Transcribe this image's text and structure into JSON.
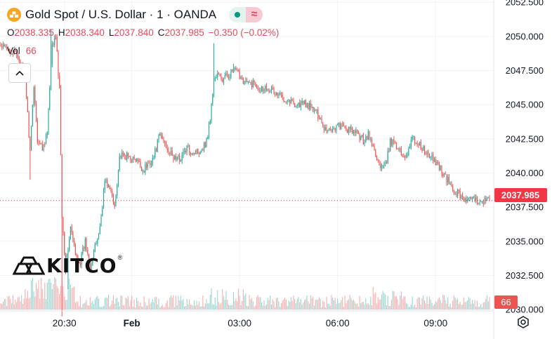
{
  "header": {
    "title": "Gold Spot / U.S. Dollar · 1 · OANDA",
    "ohlc": {
      "o_label": "O",
      "o": "2038.335",
      "h_label": "H",
      "h": "2038.340",
      "l_label": "L",
      "l": "2037.840",
      "c_label": "C",
      "c": "2037.985",
      "change": "−0.350 (−0.02%)"
    },
    "vol_label": "Vol",
    "vol_value": "66"
  },
  "logo": {
    "text": "KITCO",
    "mark": "®"
  },
  "colors": {
    "up": "#26a69a",
    "down": "#ef5350",
    "grid": "#f0f3fa",
    "axis_text": "#131722",
    "badge": "#f23645"
  },
  "chart_data": {
    "type": "candlestick",
    "symbol": "Gold Spot / U.S. Dollar",
    "interval": "1",
    "source": "OANDA",
    "x_ticks": [
      {
        "label": "20:30",
        "idx": 52
      },
      {
        "label": "Feb",
        "idx": 107
      },
      {
        "label": "03:00",
        "idx": 195
      },
      {
        "label": "06:00",
        "idx": 275
      },
      {
        "label": "09:00",
        "idx": 355
      }
    ],
    "y_ticks": [
      "2052.500",
      "2050.000",
      "2047.500",
      "2045.000",
      "2042.500",
      "2040.000",
      "2037.500",
      "2035.000",
      "2032.500",
      "2030.000"
    ],
    "ylim": [
      2029.0,
      2053.0
    ],
    "last_price": "2037.985",
    "last_volume": "66",
    "n_bars": 400,
    "keypoints": [
      [
        0,
        2049.2
      ],
      [
        8,
        2049.0
      ],
      [
        14,
        2048.6
      ],
      [
        20,
        2047.0
      ],
      [
        24,
        2041.5
      ],
      [
        27,
        2046.5
      ],
      [
        30,
        2042.5
      ],
      [
        34,
        2041.8
      ],
      [
        38,
        2043.0
      ],
      [
        42,
        2049.3
      ],
      [
        45,
        2050.0
      ],
      [
        48,
        2046.0
      ],
      [
        50,
        2037.0
      ],
      [
        53,
        2033.0
      ],
      [
        57,
        2036.0
      ],
      [
        61,
        2034.0
      ],
      [
        65,
        2033.5
      ],
      [
        69,
        2035.0
      ],
      [
        73,
        2033.2
      ],
      [
        77,
        2034.5
      ],
      [
        81,
        2036.0
      ],
      [
        85,
        2039.5
      ],
      [
        89,
        2038.8
      ],
      [
        93,
        2037.6
      ],
      [
        97,
        2041.2
      ],
      [
        103,
        2041.2
      ],
      [
        108,
        2041.0
      ],
      [
        112,
        2040.8
      ],
      [
        116,
        2040.2
      ],
      [
        120,
        2040.6
      ],
      [
        125,
        2041.2
      ],
      [
        130,
        2042.8
      ],
      [
        135,
        2042.0
      ],
      [
        140,
        2041.2
      ],
      [
        146,
        2041.0
      ],
      [
        152,
        2041.8
      ],
      [
        158,
        2041.5
      ],
      [
        163,
        2041.7
      ],
      [
        168,
        2042.3
      ],
      [
        171,
        2044.0
      ],
      [
        174,
        2046.8
      ],
      [
        177,
        2047.2
      ],
      [
        181,
        2046.8
      ],
      [
        186,
        2047.2
      ],
      [
        190,
        2047.5
      ],
      [
        194,
        2047.3
      ],
      [
        198,
        2046.8
      ],
      [
        202,
        2046.5
      ],
      [
        206,
        2046.6
      ],
      [
        212,
        2046.2
      ],
      [
        218,
        2046.3
      ],
      [
        224,
        2045.8
      ],
      [
        230,
        2045.6
      ],
      [
        236,
        2045.3
      ],
      [
        242,
        2045.0
      ],
      [
        248,
        2045.1
      ],
      [
        254,
        2044.7
      ],
      [
        260,
        2044.2
      ],
      [
        264,
        2043.3
      ],
      [
        270,
        2043.2
      ],
      [
        276,
        2043.5
      ],
      [
        282,
        2043.2
      ],
      [
        288,
        2043.0
      ],
      [
        292,
        2042.8
      ],
      [
        296,
        2042.4
      ],
      [
        300,
        2042.8
      ],
      [
        306,
        2041.4
      ],
      [
        310,
        2040.3
      ],
      [
        314,
        2040.5
      ],
      [
        318,
        2042.2
      ],
      [
        322,
        2042.3
      ],
      [
        326,
        2041.5
      ],
      [
        330,
        2041.2
      ],
      [
        336,
        2042.5
      ],
      [
        341,
        2042.2
      ],
      [
        347,
        2041.4
      ],
      [
        353,
        2041.0
      ],
      [
        358,
        2040.5
      ],
      [
        362,
        2039.8
      ],
      [
        366,
        2039.3
      ],
      [
        370,
        2038.6
      ],
      [
        374,
        2038.5
      ],
      [
        379,
        2038.0
      ]
    ],
    "spikes": [
      [
        41,
        2050.5
      ],
      [
        50,
        2029.5
      ],
      [
        55,
        2031.5
      ],
      [
        174,
        2049.5
      ],
      [
        190,
        2048.0
      ],
      [
        24,
        2039.5
      ],
      [
        13,
        2048.4
      ]
    ]
  }
}
